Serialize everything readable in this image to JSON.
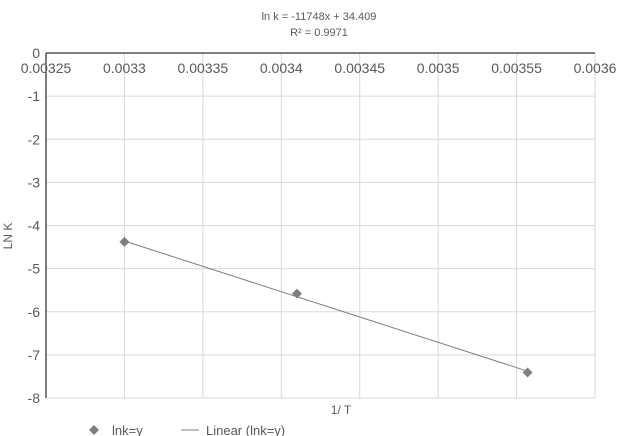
{
  "chart_data": {
    "type": "scatter",
    "title": "",
    "trendline_equation": "ln k = -11748x + 34.409",
    "r_squared_label": "R² = 0.9971",
    "xlabel": "1/ T",
    "ylabel": "LN K",
    "xlim": [
      0.00325,
      0.0036
    ],
    "ylim": [
      -8,
      0
    ],
    "x_ticks": [
      "0.00325",
      "0.0033",
      "0.00335",
      "0.0034",
      "0.00345",
      "0.0035",
      "0.00355",
      "0.0036"
    ],
    "y_ticks": [
      "0",
      "-1",
      "-2",
      "-3",
      "-4",
      "-5",
      "-6",
      "-7",
      "-8"
    ],
    "grid": true,
    "legend_position": "bottom-left",
    "series": [
      {
        "name": "lnk=y",
        "marker": "diamond",
        "color": "#7f7f7f",
        "points": [
          {
            "x": 0.0033,
            "y": -4.38
          },
          {
            "x": 0.00341,
            "y": -5.58
          },
          {
            "x": 0.003557,
            "y": -7.41
          }
        ]
      }
    ],
    "trendline": {
      "name": "Linear (lnk=y)",
      "type": "linear",
      "slope": -11748,
      "intercept": 34.409,
      "x_range": [
        0.0033,
        0.003557
      ],
      "color": "#7f7f7f"
    }
  }
}
